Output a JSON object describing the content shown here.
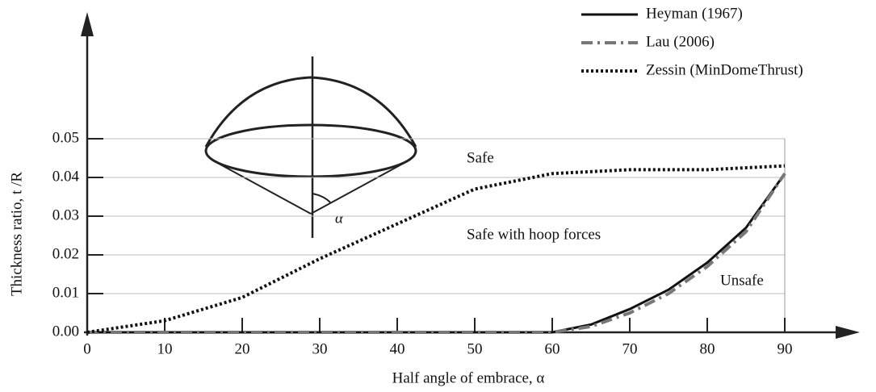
{
  "chart_data": {
    "type": "line",
    "xlabel": "Half angle of embrace, α",
    "ylabel": "Thickness ratio, t /R",
    "xlim": [
      0,
      90
    ],
    "ylim": [
      0,
      0.05
    ],
    "xticks": [
      0,
      10,
      20,
      30,
      40,
      50,
      60,
      70,
      80,
      90
    ],
    "yticks": [
      {
        "value": 0,
        "label": "0.00"
      },
      0.01,
      0.02,
      0.03,
      0.04,
      0.05
    ],
    "grid": true,
    "legend": "top-right",
    "series": [
      {
        "name": "Heyman (1967)",
        "color": "#111111",
        "style": "solid",
        "x": [
          0,
          60,
          65,
          70,
          75,
          80,
          85,
          90
        ],
        "values": [
          0,
          0,
          0.002,
          0.006,
          0.011,
          0.018,
          0.027,
          0.041
        ]
      },
      {
        "name": "Lau (2006)",
        "color": "#777777",
        "style": "dashed",
        "x": [
          0,
          60,
          65,
          70,
          75,
          80,
          85,
          90
        ],
        "values": [
          0,
          0,
          0.0015,
          0.005,
          0.01,
          0.017,
          0.026,
          0.041
        ]
      },
      {
        "name": "Zessin (MinDomeThrust)",
        "color": "#111111",
        "style": "dotted",
        "x": [
          0,
          10,
          20,
          30,
          40,
          50,
          60,
          70,
          80,
          90
        ],
        "values": [
          0,
          0.003,
          0.009,
          0.019,
          0.028,
          0.037,
          0.041,
          0.042,
          0.042,
          0.043
        ]
      }
    ],
    "annotations": [
      "Safe",
      "Safe with hoop forces",
      "Unsafe"
    ],
    "diagram_label": "α"
  }
}
